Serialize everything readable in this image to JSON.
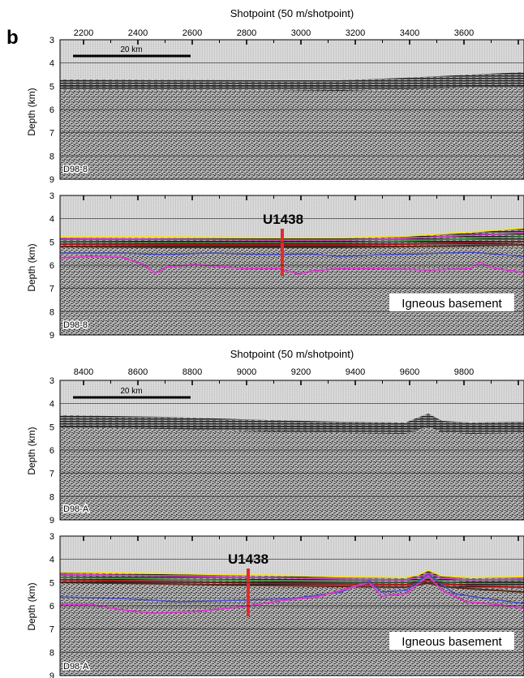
{
  "figure": {
    "panel_label": "b",
    "colors": {
      "yellow_horizon": "#f2e03a",
      "red_horizon": "#b0161b",
      "brown_horizon": "#5a2a1a",
      "green_horizon": "#3c9a3c",
      "blue_horizon": "#4a4ac8",
      "magenta_horizon": "#d63cc8",
      "borehole": "#e32b2b",
      "gridline": "#222222"
    }
  },
  "sections": [
    {
      "axis_title": "Shotpoint (50 m/shotpoint)",
      "shotpoint_ticks": [
        "2200",
        "2400",
        "2600",
        "2800",
        "3000",
        "3200",
        "3400",
        "3600"
      ],
      "scale_bar_label": "20 km",
      "panels": [
        {
          "ylabel": "Depth (km)",
          "depth_ticks": [
            "3",
            "4",
            "5",
            "6",
            "7",
            "8",
            "9"
          ],
          "line_name": "D98-8"
        },
        {
          "ylabel": "Depth (km)",
          "depth_ticks": [
            "3",
            "4",
            "5",
            "6",
            "7",
            "8",
            "9"
          ],
          "line_name": "D98-8",
          "site_label": "U1438",
          "basement_label": "Igneous basement"
        }
      ]
    },
    {
      "axis_title": "Shotpoint (50 m/shotpoint)",
      "shotpoint_ticks": [
        "8400",
        "8600",
        "8800",
        "9000",
        "9200",
        "9400",
        "9600",
        "9800"
      ],
      "scale_bar_label": "20 km",
      "panels": [
        {
          "ylabel": "Depth (km)",
          "depth_ticks": [
            "3",
            "4",
            "5",
            "6",
            "7",
            "8",
            "9"
          ],
          "line_name": "D98-A"
        },
        {
          "ylabel": "Depth (km)",
          "depth_ticks": [
            "3",
            "4",
            "5",
            "6",
            "7",
            "8",
            "9"
          ],
          "line_name": "D98-A",
          "site_label": "U1438",
          "basement_label": "Igneous basement"
        }
      ]
    }
  ]
}
